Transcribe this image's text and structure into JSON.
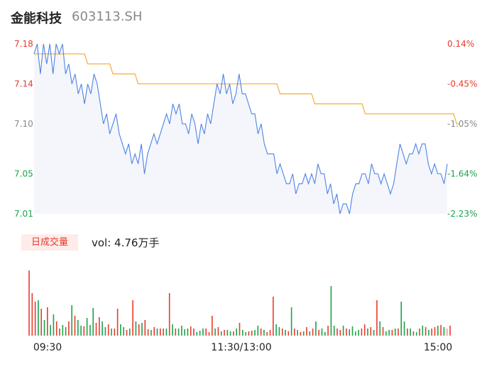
{
  "header": {
    "name": "金能科技",
    "code": "603113.SH"
  },
  "volume_panel": {
    "badge": "日成交量",
    "label": "vol: 4.76万手"
  },
  "colors": {
    "price_line": "#4f83e6",
    "avg_line": "#f5a623",
    "up": "#e83a2c",
    "down": "#1aa34a",
    "flat": "#888888",
    "area": "#f4f6fc"
  },
  "chart_data": [
    {
      "type": "line",
      "title": "",
      "price_ticks": [
        {
          "label": "7.18",
          "value": 7.18,
          "color": "#e83a2c"
        },
        {
          "label": "7.14",
          "value": 7.14,
          "color": "#e83a2c"
        },
        {
          "label": "7.10",
          "value": 7.1,
          "color": "#888888"
        },
        {
          "label": "7.05",
          "value": 7.05,
          "color": "#1aa34a"
        },
        {
          "label": "7.01",
          "value": 7.01,
          "color": "#1aa34a"
        }
      ],
      "pct_ticks": [
        {
          "label": "0.14%",
          "color": "#e83a2c"
        },
        {
          "label": "-0.45%",
          "color": "#e83a2c"
        },
        {
          "label": "-1.05%",
          "color": "#888888"
        },
        {
          "label": "-1.64%",
          "color": "#1aa34a"
        },
        {
          "label": "-2.23%",
          "color": "#1aa34a"
        }
      ],
      "ylim": [
        7.01,
        7.18
      ],
      "x_ticks": [
        "09:30",
        "11:30/13:00",
        "15:00"
      ],
      "series": [
        {
          "values": [
            7.17,
            7.18,
            7.15,
            7.18,
            7.16,
            7.18,
            7.15,
            7.18,
            7.17,
            7.18,
            7.15,
            7.16,
            7.14,
            7.15,
            7.13,
            7.14,
            7.12,
            7.14,
            7.13,
            7.15,
            7.14,
            7.12,
            7.1,
            7.11,
            7.09,
            7.1,
            7.11,
            7.09,
            7.08,
            7.07,
            7.08,
            7.06,
            7.07,
            7.06,
            7.08,
            7.05,
            7.07,
            7.08,
            7.09,
            7.08,
            7.09,
            7.1,
            7.11,
            7.1,
            7.12,
            7.11,
            7.12,
            7.1,
            7.1,
            7.09,
            7.11,
            7.1,
            7.08,
            7.1,
            7.09,
            7.11,
            7.1,
            7.12,
            7.14,
            7.13,
            7.15,
            7.13,
            7.14,
            7.12,
            7.13,
            7.15,
            7.13,
            7.13,
            7.12,
            7.11,
            7.11,
            7.09,
            7.1,
            7.08,
            7.07,
            7.07,
            7.07,
            7.05,
            7.06,
            7.05,
            7.04,
            7.04,
            7.05,
            7.03,
            7.04,
            7.04,
            7.05,
            7.04,
            7.05,
            7.04,
            7.06,
            7.05,
            7.05,
            7.03,
            7.04,
            7.02,
            7.03,
            7.01,
            7.02,
            7.02,
            7.01,
            7.03,
            7.04,
            7.04,
            7.05,
            7.05,
            7.04,
            7.06,
            7.05,
            7.05,
            7.04,
            7.05,
            7.04,
            7.03,
            7.04,
            7.06,
            7.08,
            7.07,
            7.06,
            7.07,
            7.07,
            7.08,
            7.07,
            7.08,
            7.08,
            7.06,
            7.05,
            7.06,
            7.05,
            7.05,
            7.04,
            7.06
          ]
        },
        {
          "values": [
            7.17,
            7.17,
            7.17,
            7.17,
            7.17,
            7.17,
            7.17,
            7.17,
            7.17,
            7.17,
            7.17,
            7.17,
            7.17,
            7.17,
            7.17,
            7.17,
            7.17,
            7.16,
            7.16,
            7.16,
            7.16,
            7.16,
            7.16,
            7.16,
            7.16,
            7.15,
            7.15,
            7.15,
            7.15,
            7.15,
            7.15,
            7.15,
            7.15,
            7.14,
            7.14,
            7.14,
            7.14,
            7.14,
            7.14,
            7.14,
            7.14,
            7.14,
            7.14,
            7.14,
            7.14,
            7.14,
            7.14,
            7.14,
            7.14,
            7.14,
            7.14,
            7.14,
            7.14,
            7.14,
            7.14,
            7.14,
            7.14,
            7.14,
            7.14,
            7.14,
            7.14,
            7.14,
            7.14,
            7.14,
            7.14,
            7.14,
            7.14,
            7.14,
            7.14,
            7.14,
            7.14,
            7.14,
            7.14,
            7.14,
            7.14,
            7.14,
            7.14,
            7.14,
            7.13,
            7.13,
            7.13,
            7.13,
            7.13,
            7.13,
            7.13,
            7.13,
            7.13,
            7.13,
            7.13,
            7.12,
            7.12,
            7.12,
            7.12,
            7.12,
            7.12,
            7.12,
            7.12,
            7.12,
            7.12,
            7.12,
            7.12,
            7.12,
            7.12,
            7.12,
            7.12,
            7.11,
            7.11,
            7.11,
            7.11,
            7.11,
            7.11,
            7.11,
            7.11,
            7.11,
            7.11,
            7.11,
            7.11,
            7.11,
            7.11,
            7.11,
            7.11,
            7.11,
            7.11,
            7.11,
            7.11,
            7.11,
            7.11,
            7.11,
            7.11,
            7.11,
            7.11,
            7.11,
            7.11,
            7.11,
            7.1,
            7.1
          ]
        }
      ]
    },
    {
      "type": "bar",
      "title": "",
      "volumes": [
        0.92,
        0.6,
        0.48,
        0.5,
        0.38,
        0.22,
        0.4,
        0.15,
        0.3,
        0.2,
        0.1,
        0.15,
        0.12,
        0.2,
        0.43,
        0.28,
        0.22,
        0.14,
        0.13,
        0.25,
        0.15,
        0.39,
        0.18,
        0.26,
        0.2,
        0.12,
        0.16,
        0.1,
        0.1,
        0.38,
        0.16,
        0.12,
        0.08,
        0.1,
        0.5,
        0.2,
        0.16,
        0.18,
        0.22,
        0.09,
        0.08,
        0.12,
        0.1,
        0.1,
        0.1,
        0.1,
        0.6,
        0.16,
        0.1,
        0.1,
        0.14,
        0.09,
        0.1,
        0.13,
        0.1,
        0.05,
        0.07,
        0.1,
        0.1,
        0.05,
        0.28,
        0.1,
        0.12,
        0.06,
        0.08,
        0.08,
        0.06,
        0.06,
        0.1,
        0.18,
        0.08,
        0.05,
        0.06,
        0.07,
        0.08,
        0.14,
        0.1,
        0.08,
        0.05,
        0.08,
        0.55,
        0.16,
        0.12,
        0.1,
        0.08,
        0.06,
        0.4,
        0.1,
        0.08,
        0.05,
        0.06,
        0.12,
        0.06,
        0.1,
        0.2,
        0.08,
        0.1,
        0.05,
        0.14,
        0.7,
        0.14,
        0.1,
        0.08,
        0.14,
        0.1,
        0.09,
        0.13,
        0.06,
        0.08,
        0.1,
        0.16,
        0.1,
        0.12,
        0.08,
        0.5,
        0.2,
        0.12,
        0.06,
        0.08,
        0.08,
        0.1,
        0.1,
        0.48,
        0.2,
        0.1,
        0.1,
        0.06,
        0.05,
        0.1,
        0.14,
        0.12,
        0.08,
        0.1,
        0.12,
        0.14,
        0.15,
        0.12,
        0.1,
        0.14
      ],
      "volume_colors": [
        "u",
        "u",
        "u",
        "d",
        "u",
        "d",
        "u",
        "d",
        "d",
        "u",
        "u",
        "d",
        "d",
        "u",
        "d",
        "u",
        "d",
        "d",
        "u",
        "d",
        "d",
        "d",
        "u",
        "u",
        "d",
        "d",
        "u",
        "d",
        "u",
        "u",
        "d",
        "d",
        "u",
        "d",
        "u",
        "d",
        "u",
        "d",
        "u",
        "u",
        "d",
        "u",
        "d",
        "u",
        "u",
        "d",
        "u",
        "d",
        "u",
        "d",
        "d",
        "d",
        "d",
        "u",
        "u",
        "d",
        "d",
        "d",
        "u",
        "u",
        "u",
        "d",
        "u",
        "d",
        "u",
        "d",
        "d",
        "u",
        "d",
        "u",
        "d",
        "d",
        "u",
        "u",
        "d",
        "d",
        "u",
        "d",
        "u",
        "u",
        "u",
        "d",
        "d",
        "u",
        "d",
        "u",
        "d",
        "u",
        "d",
        "u",
        "d",
        "u",
        "d",
        "u",
        "d",
        "u",
        "d",
        "d",
        "u",
        "d",
        "d",
        "u",
        "u",
        "d",
        "u",
        "d",
        "d",
        "d",
        "d",
        "u",
        "u",
        "d",
        "u",
        "d",
        "u",
        "d",
        "u",
        "d",
        "d",
        "u",
        "d",
        "u",
        "d",
        "d",
        "u",
        "d",
        "u",
        "d",
        "u",
        "d",
        "u",
        "d",
        "u",
        "u",
        "d",
        "u",
        "d",
        "f",
        "u"
      ]
    }
  ]
}
